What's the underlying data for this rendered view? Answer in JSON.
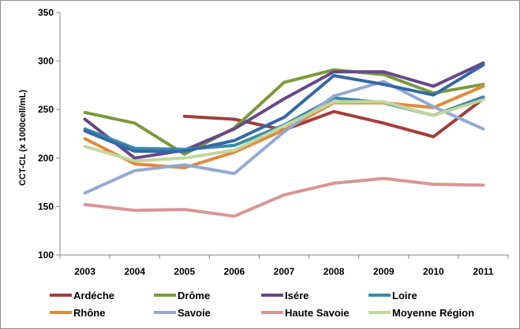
{
  "chart_data": {
    "type": "line",
    "title": "",
    "xlabel": "",
    "ylabel": "CCT-CL (x 1000cell/mL)",
    "ylim": [
      100,
      350
    ],
    "yticks": [
      100,
      150,
      200,
      250,
      300,
      350
    ],
    "grid": false,
    "legend_position": "bottom",
    "categories": [
      "2003",
      "2004",
      "2005",
      "2006",
      "2007",
      "2008",
      "2009",
      "2010",
      "2011"
    ],
    "series": [
      {
        "name": "Ardéche",
        "color": "#a33e3b",
        "values": [
          null,
          null,
          243,
          240,
          229,
          248,
          236,
          222,
          261
        ]
      },
      {
        "name": "Drôme",
        "color": "#7a9a3c",
        "values": [
          247,
          236,
          204,
          231,
          278,
          291,
          286,
          267,
          276
        ]
      },
      {
        "name": "Isére",
        "color": "#66478a",
        "values": [
          240,
          200,
          208,
          230,
          261,
          289,
          289,
          274,
          298
        ]
      },
      {
        "name": "Loire",
        "color": "#3a8ba8",
        "values": [
          230,
          210,
          209,
          213,
          234,
          262,
          257,
          244,
          263
        ]
      },
      {
        "name": "Rhône",
        "color": "#e08a3c",
        "values": [
          220,
          194,
          190,
          206,
          229,
          257,
          257,
          252,
          274
        ]
      },
      {
        "name": "Savoie",
        "color": "#93a9d1",
        "values": [
          164,
          187,
          193,
          184,
          227,
          264,
          279,
          253,
          230
        ]
      },
      {
        "name": "Haute Savoie",
        "color": "#d99594",
        "values": [
          152,
          146,
          147,
          140,
          162,
          174,
          179,
          173,
          172
        ]
      },
      {
        "name": "Moyenne Région",
        "color": "#c3d69b",
        "values": [
          212,
          197,
          200,
          208,
          233,
          258,
          258,
          244,
          260
        ]
      },
      {
        "name": "",
        "color": "#3468a6",
        "values": [
          228,
          207,
          207,
          218,
          242,
          285,
          276,
          265,
          296
        ]
      }
    ]
  }
}
